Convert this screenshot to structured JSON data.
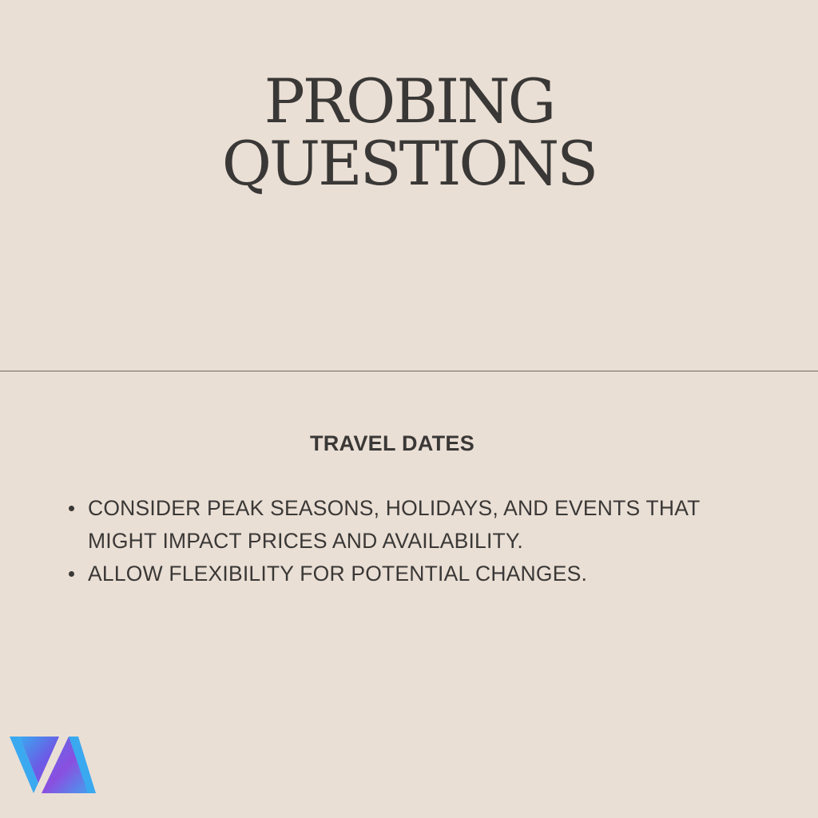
{
  "title": {
    "line1": "PROBING",
    "line2": "QUESTIONS"
  },
  "section": {
    "heading": "TRAVEL DATES",
    "bullets": [
      "CONSIDER PEAK SEASONS, HOLIDAYS, AND EVENTS THAT MIGHT IMPACT PRICES AND AVAILABILITY.",
      "ALLOW FLEXIBILITY FOR POTENTIAL CHANGES."
    ]
  },
  "colors": {
    "background": "#eadfd5",
    "text": "#3a3836",
    "divider": "#6e6862",
    "logo_blue": "#3aa9f0",
    "logo_purple": "#8a4fe0"
  },
  "logo": {
    "icon": "va-logo-icon"
  }
}
